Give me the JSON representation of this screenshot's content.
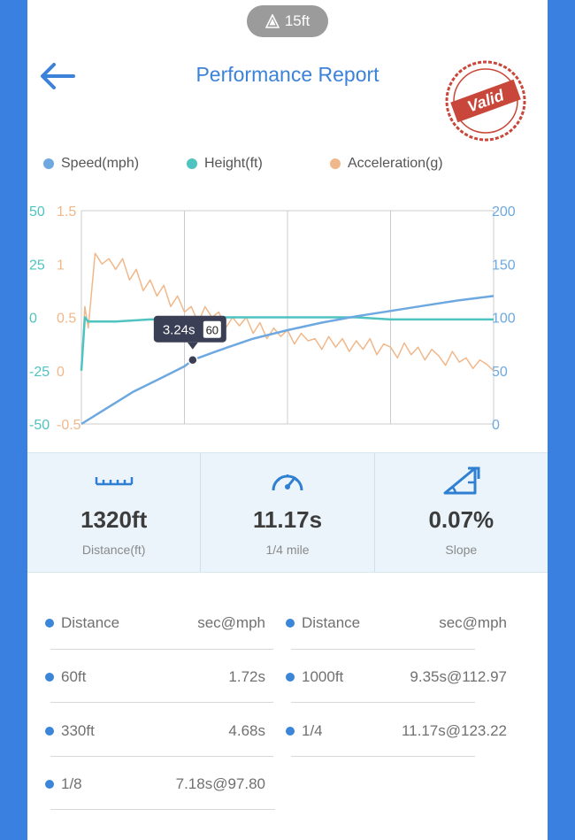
{
  "header": {
    "altitude": "15ft",
    "title": "Performance Report",
    "stamp_text": "Valid"
  },
  "legend": [
    {
      "label": "Speed(mph)",
      "color": "#6ea8e0"
    },
    {
      "label": "Height(ft)",
      "color": "#4fc3c0"
    },
    {
      "label": "Acceleration(g)",
      "color": "#f0b88a"
    }
  ],
  "chart_data": {
    "type": "line",
    "x_range": [
      0,
      12
    ],
    "left_axis_height": {
      "ticks": [
        "50",
        "25",
        "0",
        "-25",
        "-50"
      ],
      "range": [
        -50,
        50
      ],
      "color": "#4fc3c0"
    },
    "left_axis_accel": {
      "ticks": [
        "1.5",
        "1",
        "0.5",
        "0",
        "-0.5"
      ],
      "range": [
        -0.5,
        1.5
      ],
      "color": "#f0b88a"
    },
    "right_axis_speed": {
      "ticks": [
        "200",
        "150",
        "100",
        "50",
        "0"
      ],
      "range": [
        0,
        200
      ],
      "color": "#6ea8e0"
    },
    "series": [
      {
        "name": "Speed(mph)",
        "color": "#6ea8e0",
        "x": [
          0,
          0.5,
          1,
          1.5,
          2,
          2.5,
          3,
          3.24,
          4,
          5,
          6,
          7,
          8,
          9,
          10,
          11,
          12
        ],
        "y": [
          0,
          10,
          20,
          30,
          38,
          46,
          54,
          60,
          69,
          80,
          88,
          95,
          101,
          106,
          111,
          116,
          120
        ]
      },
      {
        "name": "Height(ft)",
        "color": "#4fc3c0",
        "x": [
          0,
          0.1,
          0.2,
          1,
          2,
          3,
          4,
          5,
          6,
          7,
          8,
          9,
          10,
          11,
          12
        ],
        "y": [
          -25,
          0,
          -2,
          -2,
          -1,
          -1,
          0,
          0,
          0,
          0,
          0,
          -1,
          -1,
          -1,
          -1
        ]
      },
      {
        "name": "Acceleration(g)",
        "color": "#f0b88a",
        "x": [
          0,
          0.1,
          0.2,
          0.4,
          0.6,
          0.8,
          1.0,
          1.2,
          1.4,
          1.6,
          1.8,
          2.0,
          2.2,
          2.4,
          2.6,
          2.8,
          3.0,
          3.2,
          3.4,
          3.6,
          3.8,
          4.0,
          4.2,
          4.4,
          4.6,
          4.8,
          5.0,
          5.2,
          5.4,
          5.6,
          5.8,
          6.0,
          6.2,
          6.4,
          6.6,
          6.8,
          7.0,
          7.2,
          7.4,
          7.6,
          7.8,
          8.0,
          8.2,
          8.4,
          8.6,
          8.8,
          9.0,
          9.2,
          9.4,
          9.6,
          9.8,
          10.0,
          10.2,
          10.4,
          10.6,
          10.8,
          11.0,
          11.2,
          11.4,
          11.6,
          11.8,
          12.0
        ],
        "y": [
          0,
          0.6,
          0.4,
          1.1,
          1.0,
          1.05,
          0.95,
          1.05,
          0.85,
          0.95,
          0.75,
          0.85,
          0.7,
          0.8,
          0.6,
          0.7,
          0.55,
          0.6,
          0.45,
          0.6,
          0.5,
          0.55,
          0.4,
          0.5,
          0.42,
          0.5,
          0.35,
          0.45,
          0.3,
          0.4,
          0.32,
          0.38,
          0.25,
          0.35,
          0.28,
          0.3,
          0.2,
          0.32,
          0.22,
          0.3,
          0.18,
          0.28,
          0.2,
          0.3,
          0.15,
          0.25,
          0.22,
          0.12,
          0.26,
          0.15,
          0.22,
          0.1,
          0.2,
          0.14,
          0.05,
          0.18,
          0.08,
          0.12,
          0.02,
          0.1,
          0.06,
          0.0
        ]
      }
    ],
    "tooltip": {
      "time": "3.24s",
      "value": "60",
      "x": 3.24,
      "y": 60
    }
  },
  "stats": [
    {
      "icon": "ruler-icon",
      "value": "1320ft",
      "label": "Distance(ft)"
    },
    {
      "icon": "speedometer-icon",
      "value": "11.17s",
      "label": "1/4 mile"
    },
    {
      "icon": "slope-icon",
      "value": "0.07%",
      "label": "Slope"
    }
  ],
  "table": {
    "left": [
      {
        "label": "Distance",
        "value": "sec@mph"
      },
      {
        "label": "60ft",
        "value": "1.72s"
      },
      {
        "label": "330ft",
        "value": "4.68s"
      },
      {
        "label": "1/8",
        "value": "7.18s@97.80"
      }
    ],
    "right": [
      {
        "label": "Distance",
        "value": "sec@mph"
      },
      {
        "label": "1000ft",
        "value": "9.35s@112.97"
      },
      {
        "label": "1/4",
        "value": "11.17s@123.22"
      }
    ]
  }
}
